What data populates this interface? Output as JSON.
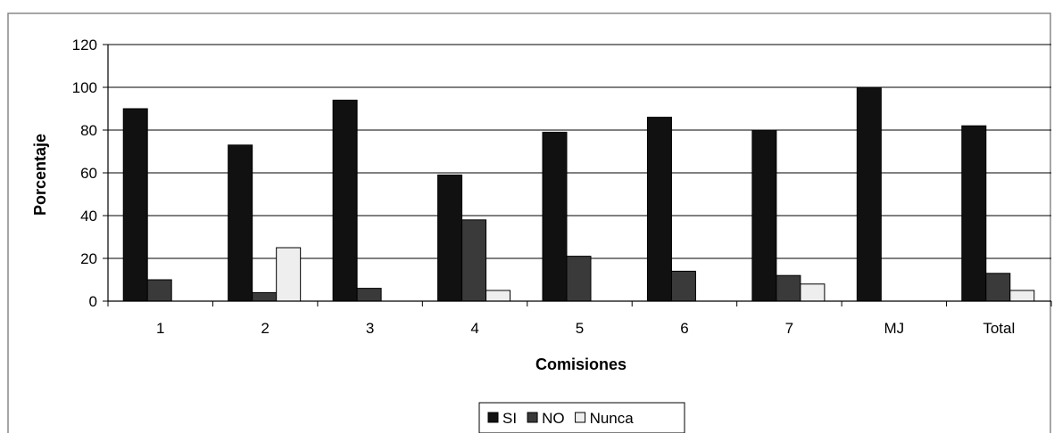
{
  "chart_data": {
    "type": "bar",
    "title": "",
    "xlabel": "Comisiones",
    "ylabel": "Porcentaje",
    "ylim": [
      0,
      120
    ],
    "yticks": [
      0,
      20,
      40,
      60,
      80,
      100,
      120
    ],
    "grid": true,
    "legend_position": "bottom",
    "categories": [
      "1",
      "2",
      "3",
      "4",
      "5",
      "6",
      "7",
      "MJ",
      "Total"
    ],
    "series": [
      {
        "name": "SI",
        "color": "#111111",
        "values": [
          90,
          73,
          94,
          59,
          79,
          86,
          80,
          100,
          82
        ]
      },
      {
        "name": "NO",
        "color": "#3a3a3a",
        "values": [
          10,
          4,
          6,
          38,
          21,
          14,
          12,
          0,
          13
        ]
      },
      {
        "name": "Nunca",
        "color": "#eeeeee",
        "values": [
          0,
          25,
          0,
          5,
          0,
          0,
          8,
          0,
          5
        ]
      }
    ]
  }
}
